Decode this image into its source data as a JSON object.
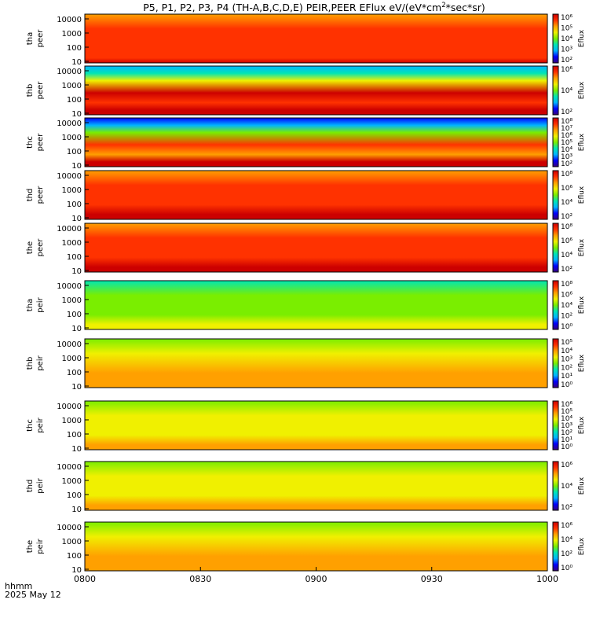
{
  "chart_data": {
    "type": "heatmap",
    "title": "P5, P1, P2, P3, P4 (TH-A,B,C,D,E) PEIR,PEER EFlux eV/(eV*cm",
    "title_sup": "2",
    "title_tail": "*sec*sr)",
    "time_label": "hhmm",
    "date_label": "2025 May 12",
    "x_ticks": [
      "0800",
      "0830",
      "0900",
      "0930",
      "1000"
    ],
    "colorbar_label": "Eflux",
    "colormap": [
      "#3a007a",
      "#0000ff",
      "#00b4ff",
      "#00e6b4",
      "#7aee00",
      "#f0f000",
      "#ffa000",
      "#ff3200",
      "#cc0000"
    ],
    "panels": [
      {
        "name": "tha",
        "species": "peer",
        "y_ticks": [
          "10000",
          "1000",
          "100",
          "10"
        ],
        "cbar_ticks": [
          "10⁶",
          "10⁵",
          "10⁴",
          "10³",
          "10²"
        ],
        "base_level": 0.83,
        "banded": false
      },
      {
        "name": "thb",
        "species": "peer",
        "y_ticks": [
          "10000",
          "1000",
          "100",
          "10"
        ],
        "cbar_ticks": [
          "10⁶",
          "10⁴",
          "10²"
        ],
        "base_level": 0.55,
        "banded": true
      },
      {
        "name": "thc",
        "species": "peer",
        "y_ticks": [
          "10000",
          "1000",
          "100",
          "10"
        ],
        "cbar_ticks": [
          "10⁸",
          "10⁷",
          "10⁶",
          "10⁵",
          "10⁴",
          "10³",
          "10²"
        ],
        "base_level": 0.45,
        "banded": true
      },
      {
        "name": "thd",
        "species": "peer",
        "y_ticks": [
          "10000",
          "1000",
          "100",
          "10"
        ],
        "cbar_ticks": [
          "10⁸",
          "10⁶",
          "10⁴",
          "10²"
        ],
        "base_level": 0.86,
        "banded": false
      },
      {
        "name": "the",
        "species": "peer",
        "y_ticks": [
          "10000",
          "1000",
          "100",
          "10"
        ],
        "cbar_ticks": [
          "10⁸",
          "10⁶",
          "10⁴",
          "10²"
        ],
        "base_level": 0.86,
        "banded": false
      },
      {
        "name": "tha",
        "species": "peir",
        "y_ticks": [
          "10000",
          "1000",
          "100",
          "10"
        ],
        "cbar_ticks": [
          "10⁸",
          "10⁶",
          "10⁴",
          "10²",
          "10⁰"
        ],
        "base_level": 0.52,
        "banded": false
      },
      {
        "name": "thb",
        "species": "peir",
        "y_ticks": [
          "10000",
          "1000",
          "100",
          "10"
        ],
        "cbar_ticks": [
          "10⁵",
          "10⁴",
          "10³",
          "10²",
          "10¹",
          "10⁰"
        ],
        "base_level": 0.68,
        "banded": false
      },
      {
        "name": "thc",
        "species": "peir",
        "y_ticks": [
          "10000",
          "1000",
          "100",
          "10"
        ],
        "cbar_ticks": [
          "10⁶",
          "10⁵",
          "10⁴",
          "10³",
          "10²",
          "10¹",
          "10⁰"
        ],
        "base_level": 0.6,
        "banded": false
      },
      {
        "name": "thd",
        "species": "peir",
        "y_ticks": [
          "10000",
          "1000",
          "100",
          "10"
        ],
        "cbar_ticks": [
          "10⁶",
          "10⁴",
          "10²"
        ],
        "base_level": 0.62,
        "banded": false
      },
      {
        "name": "the",
        "species": "peir",
        "y_ticks": [
          "10000",
          "1000",
          "100",
          "10"
        ],
        "cbar_ticks": [
          "10⁶",
          "10⁴",
          "10²",
          "10⁰"
        ],
        "base_level": 0.66,
        "banded": false
      }
    ]
  }
}
